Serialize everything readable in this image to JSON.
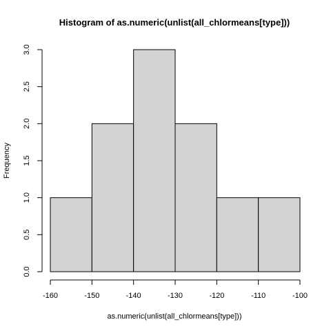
{
  "chart_data": {
    "type": "bar",
    "title": "Histogram of as.numeric(unlist(all_chlormeans[type]))",
    "xlabel": "as.numeric(unlist(all_chlormeans[type]))",
    "ylabel": "Frequency",
    "bins": [
      {
        "x0": -160,
        "x1": -150,
        "count": 1
      },
      {
        "x0": -150,
        "x1": -140,
        "count": 2
      },
      {
        "x0": -140,
        "x1": -130,
        "count": 3
      },
      {
        "x0": -130,
        "x1": -120,
        "count": 2
      },
      {
        "x0": -120,
        "x1": -110,
        "count": 1
      },
      {
        "x0": -110,
        "x1": -100,
        "count": 1
      }
    ],
    "xlim": [
      -160,
      -100
    ],
    "ylim": [
      0,
      3
    ],
    "x_ticks": [
      -160,
      -150,
      -140,
      -130,
      -120,
      -110,
      -100
    ],
    "y_ticks": [
      "0.0",
      "0.5",
      "1.0",
      "1.5",
      "2.0",
      "2.5",
      "3.0"
    ],
    "bar_fill": "#d3d3d3",
    "bar_stroke": "#000000",
    "grid": false,
    "legend": "none"
  }
}
